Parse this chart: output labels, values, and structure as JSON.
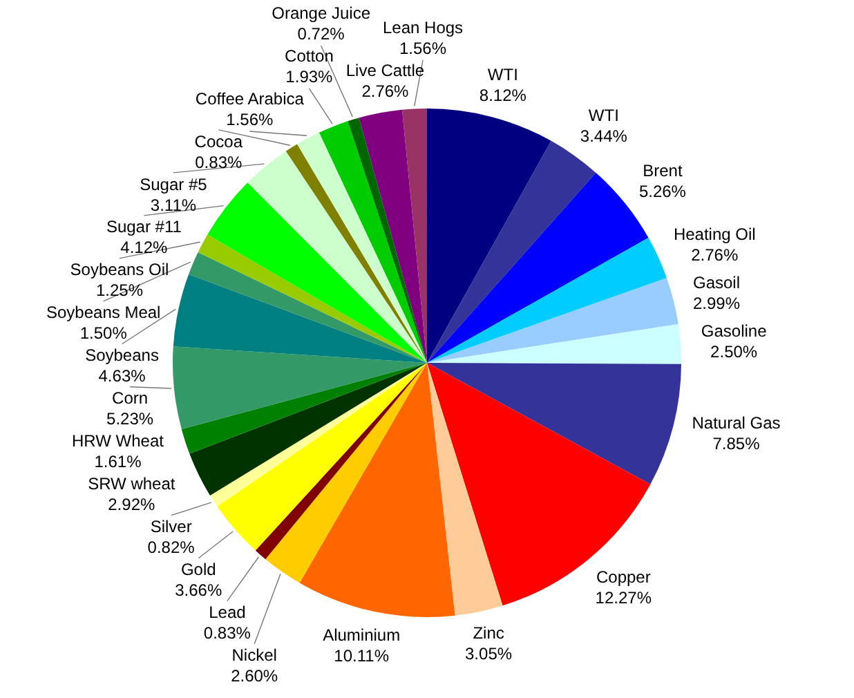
{
  "chart_data": {
    "type": "pie",
    "categories": [
      "WTI",
      "WTI",
      "Brent",
      "Heating Oil",
      "Gasoil",
      "Gasoline",
      "Natural Gas",
      "Copper",
      "Zinc",
      "Aluminium",
      "Nickel",
      "Lead",
      "Gold",
      "Silver",
      "SRW wheat",
      "HRW Wheat",
      "Corn",
      "Soybeans",
      "Soybeans Meal",
      "Soybeans Oil",
      "Sugar #11",
      "Sugar #5",
      "Cocoa",
      "Coffee Arabica",
      "Cotton",
      "Orange Juice",
      "Live Cattle",
      "Lean Hogs"
    ],
    "values": [
      8.12,
      3.44,
      5.26,
      2.76,
      2.99,
      2.5,
      7.85,
      12.27,
      3.05,
      10.11,
      2.6,
      0.83,
      3.66,
      0.82,
      2.92,
      1.61,
      5.23,
      4.63,
      1.5,
      1.25,
      4.12,
      3.11,
      0.83,
      1.56,
      1.93,
      0.72,
      2.76,
      1.56
    ],
    "value_labels": [
      "8.12%",
      "3.44%",
      "5.26%",
      "2.76%",
      "2.99%",
      "2.50%",
      "7.85%",
      "12.27%",
      "3.05%",
      "10.11%",
      "2.60%",
      "0.83%",
      "3.66%",
      "0.82%",
      "2.92%",
      "1.61%",
      "5.23%",
      "4.63%",
      "1.50%",
      "1.25%",
      "4.12%",
      "3.11%",
      "0.83%",
      "1.56%",
      "1.93%",
      "0.72%",
      "2.76%",
      "1.56%"
    ],
    "colors": [
      "#000080",
      "#333399",
      "#0000ff",
      "#00ccff",
      "#99ccff",
      "#ccffff",
      "#333399",
      "#ff0000",
      "#ffcc99",
      "#ff6600",
      "#ffcc00",
      "#800000",
      "#ffff00",
      "#ffff99",
      "#003300",
      "#008000",
      "#339966",
      "#008080",
      "#339966",
      "#99cc00",
      "#00ff00",
      "#ccffcc",
      "#808000",
      "#ccffcc",
      "#00cc00",
      "#006600",
      "#800080",
      "#993366"
    ],
    "legend": false
  }
}
